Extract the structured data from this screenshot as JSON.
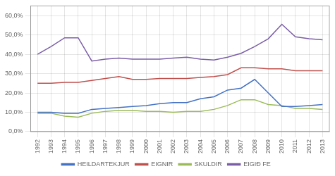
{
  "chart_data": {
    "type": "line",
    "x": [
      1992,
      1993,
      1994,
      1995,
      1996,
      1997,
      1998,
      1999,
      2000,
      2001,
      2002,
      2003,
      2004,
      2005,
      2006,
      2007,
      2008,
      2009,
      2010,
      2011,
      2012,
      2013
    ],
    "series": [
      {
        "name": "HEILDARTEKJUR",
        "color": "#4472C4",
        "values": [
          10.0,
          10.0,
          9.5,
          9.5,
          11.5,
          12.0,
          12.5,
          13.0,
          13.5,
          14.5,
          15.0,
          15.0,
          17.0,
          18.0,
          21.5,
          22.5,
          27.0,
          20.0,
          13.0,
          13.0,
          13.5,
          14.0
        ]
      },
      {
        "name": "EIGNIR",
        "color": "#C0504D",
        "values": [
          25.0,
          25.0,
          25.5,
          25.5,
          26.5,
          27.5,
          28.5,
          27.0,
          27.0,
          27.5,
          27.5,
          27.5,
          28.0,
          28.5,
          29.5,
          33.0,
          33.0,
          32.5,
          32.5,
          31.5,
          31.5,
          31.5
        ]
      },
      {
        "name": "SKULDIR",
        "color": "#9BBB59",
        "values": [
          9.5,
          9.5,
          8.0,
          7.5,
          9.5,
          10.5,
          11.0,
          11.0,
          10.5,
          10.5,
          10.0,
          10.5,
          10.5,
          11.5,
          13.5,
          16.5,
          16.5,
          14.0,
          13.5,
          12.0,
          12.0,
          11.5
        ]
      },
      {
        "name": "EIGIÐ FE",
        "color": "#7B5EA7",
        "values": [
          40.0,
          44.0,
          48.5,
          48.5,
          36.5,
          37.5,
          38.0,
          37.5,
          37.5,
          37.5,
          38.0,
          38.5,
          37.5,
          37.0,
          38.5,
          40.5,
          44.0,
          48.0,
          55.5,
          49.0,
          48.0,
          47.5
        ]
      }
    ],
    "xlim": [
      1991.5,
      2013.5
    ],
    "xticks": [
      1992,
      1993,
      1994,
      1995,
      1996,
      1997,
      1998,
      1999,
      2000,
      2001,
      2002,
      2003,
      2004,
      2005,
      2006,
      2007,
      2008,
      2009,
      2010,
      2011,
      2012,
      2013
    ],
    "ylim": [
      0,
      65
    ],
    "yticks": [
      {
        "value": 0,
        "label": "0,0%"
      },
      {
        "value": 10,
        "label": "10,0%"
      },
      {
        "value": 20,
        "label": "20,0%"
      },
      {
        "value": 30,
        "label": "30,0%"
      },
      {
        "value": 40,
        "label": "40,0%"
      },
      {
        "value": 50,
        "label": "50,0%"
      },
      {
        "value": 60,
        "label": "60,0%"
      }
    ],
    "grid": true,
    "legend": "bottom",
    "marker": "none"
  }
}
